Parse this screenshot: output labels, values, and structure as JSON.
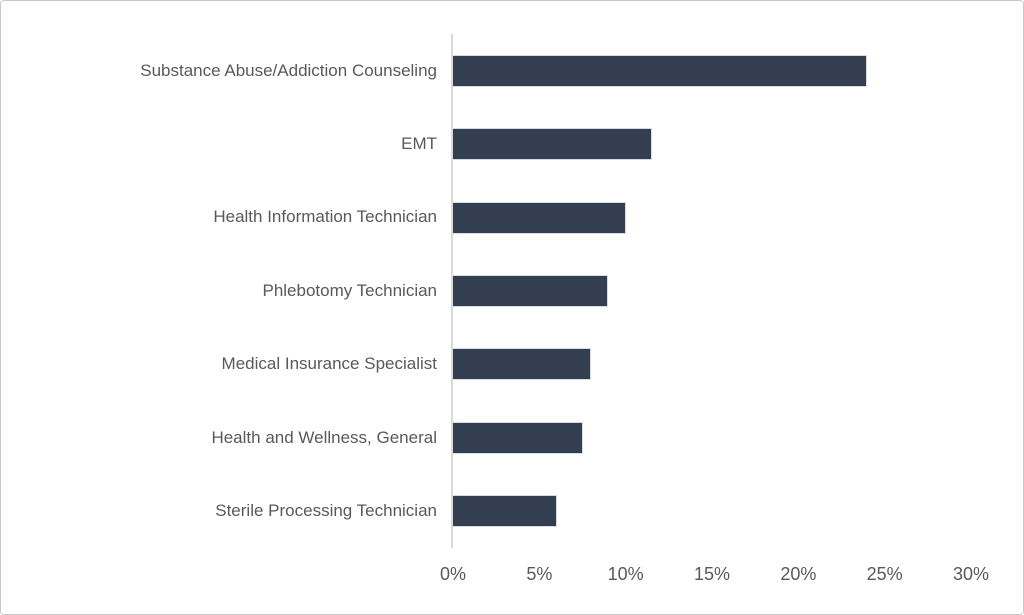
{
  "chart_data": {
    "type": "bar",
    "orientation": "horizontal",
    "title": "",
    "xlabel": "",
    "ylabel": "",
    "categories": [
      "Substance Abuse/Addiction Counseling",
      "EMT",
      "Health Information Technician",
      "Phlebotomy Technician",
      "Medical Insurance Specialist",
      "Health and Wellness, General",
      "Sterile Processing Technician"
    ],
    "values": [
      24,
      11.5,
      10,
      9,
      8,
      7.5,
      6
    ],
    "value_unit": "%",
    "xlim": [
      0,
      30
    ],
    "x_tick_labels": [
      "0%",
      "5%",
      "10%",
      "15%",
      "20%",
      "25%",
      "30%"
    ],
    "x_tick_values": [
      0,
      5,
      10,
      15,
      20,
      25,
      30
    ],
    "grid": false,
    "legend": false,
    "colors": {
      "bar_fill": "#333f50",
      "bar_border": "#d7dbe2",
      "axis_line": "#d9d9d9",
      "label_text": "#595959",
      "figure_border": "#c9c9c9",
      "background": "#ffffff"
    }
  }
}
